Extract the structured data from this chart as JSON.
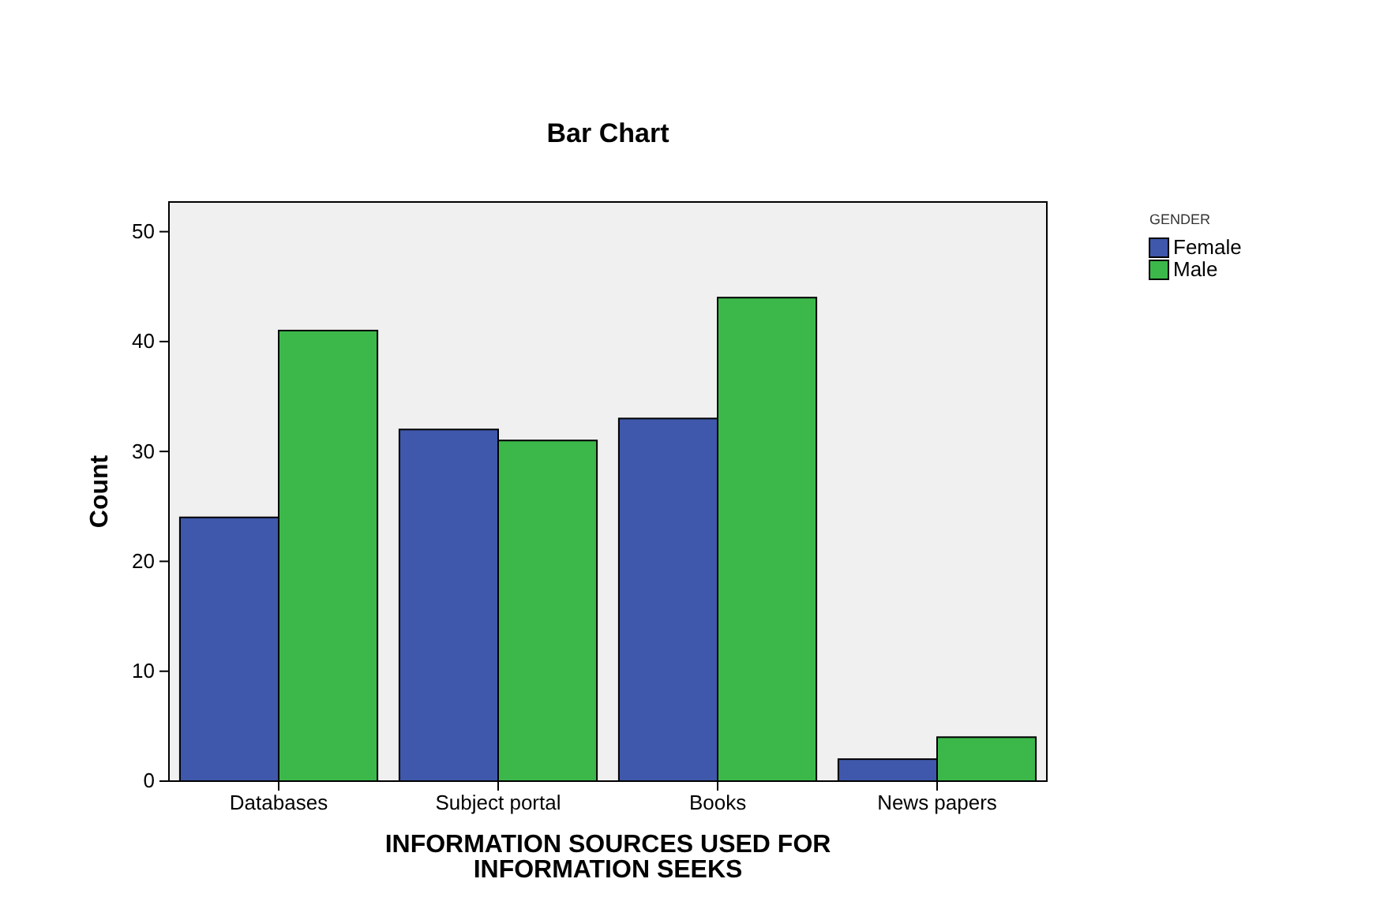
{
  "chart_data": {
    "type": "bar",
    "title": "Bar Chart",
    "xlabel": "INFORMATION SOURCES USED FOR INFORMATION SEEKS",
    "ylabel": "Count",
    "legend_title": "GENDER",
    "categories": [
      "Databases",
      "Subject portal",
      "Books",
      "News papers"
    ],
    "series": [
      {
        "name": "Female",
        "color": "#3f58ab",
        "values": [
          24,
          32,
          33,
          2
        ]
      },
      {
        "name": "Male",
        "color": "#3cb84b",
        "values": [
          41,
          31,
          44,
          4
        ]
      }
    ],
    "ylim": [
      0,
      52.7
    ],
    "yticks": [
      0,
      10,
      20,
      30,
      40,
      50
    ],
    "grid": false,
    "legend": "top right"
  }
}
